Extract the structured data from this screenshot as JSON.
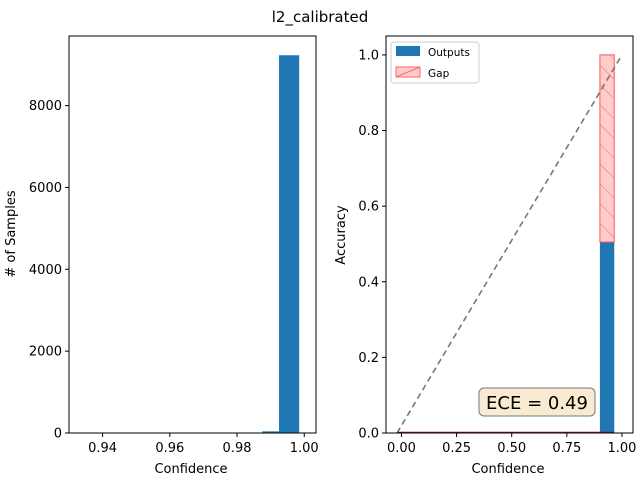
{
  "figure": {
    "title": "l2_calibrated"
  },
  "chart_data": [
    {
      "type": "bar",
      "title": "",
      "xlabel": "Confidence",
      "ylabel": "# of Samples",
      "xlim": [
        0.93,
        1.0035
      ],
      "ylim": [
        0,
        9700
      ],
      "x_ticks": [
        0.94,
        0.96,
        0.98,
        1.0
      ],
      "x_tick_labels": [
        "0.94",
        "0.96",
        "0.98",
        "1.00"
      ],
      "y_ticks": [
        0,
        2000,
        4000,
        6000,
        8000
      ],
      "y_tick_labels": [
        "0",
        "2000",
        "4000",
        "6000",
        "8000"
      ],
      "bins": [
        {
          "x0": 0.9875,
          "x1": 0.9925,
          "value": 40
        },
        {
          "x0": 0.9925,
          "x1": 0.9985,
          "value": 9230
        }
      ],
      "bar_color": "#1f77b4"
    },
    {
      "type": "bar",
      "title": "",
      "xlabel": "Confidence",
      "ylabel": "Accuracy",
      "xlim": [
        -0.07,
        1.05
      ],
      "ylim": [
        0,
        1.05
      ],
      "x_ticks": [
        0.0,
        0.25,
        0.5,
        0.75,
        1.0
      ],
      "x_tick_labels": [
        "0.00",
        "0.25",
        "0.50",
        "0.75",
        "1.00"
      ],
      "y_ticks": [
        0.0,
        0.2,
        0.4,
        0.6,
        0.8,
        1.0
      ],
      "y_tick_labels": [
        "0.0",
        "0.2",
        "0.4",
        "0.6",
        "0.8",
        "1.0"
      ],
      "series": [
        {
          "name": "Outputs",
          "color": "#1f77b4",
          "bars": [
            {
              "x0": 0.9,
              "x1": 0.965,
              "value": 0.505
            }
          ]
        },
        {
          "name": "Gap",
          "color": "#ffcccc",
          "edge_color": "#ff5555",
          "bars": [
            {
              "x0": 0.9,
              "x1": 0.965,
              "bottom": 0.505,
              "top": 1.0
            }
          ]
        }
      ],
      "diagonal": {
        "from": [
          -0.02,
          0.0
        ],
        "to": [
          1.0,
          1.0
        ],
        "color": "#777777",
        "style": "dashed"
      },
      "baseline": {
        "from": [
          -0.02,
          0.0
        ],
        "to": [
          0.965,
          0.0
        ],
        "color": "#8b1a1a"
      },
      "legend": {
        "position": "top-left",
        "entries": [
          "Outputs",
          "Gap"
        ]
      },
      "annotation": {
        "text": "ECE = 0.49",
        "x": 0.685,
        "y": 0.08,
        "face_color": "#f5deb3",
        "edge_color": "#777777"
      }
    }
  ]
}
